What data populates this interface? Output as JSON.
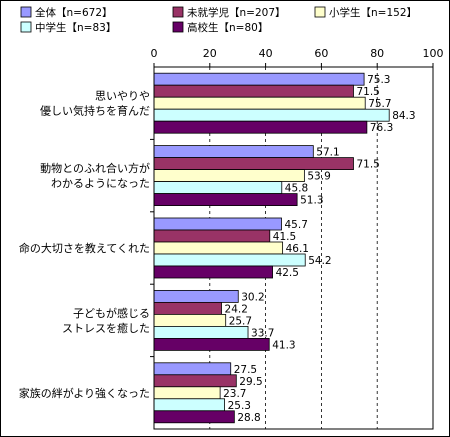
{
  "chart_data": {
    "type": "bar",
    "orientation": "horizontal",
    "xlim": [
      0,
      100
    ],
    "ticks": [
      0,
      20,
      40,
      60,
      80,
      100
    ],
    "grid": "vertical dashed",
    "legend_position": "top",
    "categories": [
      [
        "思いやりや",
        "優しい気持ちを育んだ"
      ],
      [
        "動物とのふれ合い方が",
        "わかるようになった"
      ],
      [
        "命の大切さを教えてくれた"
      ],
      [
        "子どもが感じる",
        "ストレスを癒した"
      ],
      [
        "家族の絆がより強くなった"
      ]
    ],
    "series": [
      {
        "name": "全体【n=672】",
        "color": "#9999ff",
        "values": [
          75.3,
          57.1,
          45.7,
          30.2,
          27.5
        ]
      },
      {
        "name": "未就学児【n=207】",
        "color": "#993366",
        "values": [
          71.5,
          71.5,
          41.5,
          24.2,
          29.5
        ]
      },
      {
        "name": "小学生【n=152】",
        "color": "#ffffcc",
        "values": [
          75.7,
          53.9,
          46.1,
          25.7,
          23.7
        ]
      },
      {
        "name": "中学生【n=83】",
        "color": "#ccffff",
        "values": [
          84.3,
          45.8,
          54.2,
          33.7,
          25.3
        ]
      },
      {
        "name": "高校生【n=80】",
        "color": "#660066",
        "values": [
          76.3,
          51.3,
          42.5,
          41.3,
          28.8
        ]
      }
    ]
  }
}
